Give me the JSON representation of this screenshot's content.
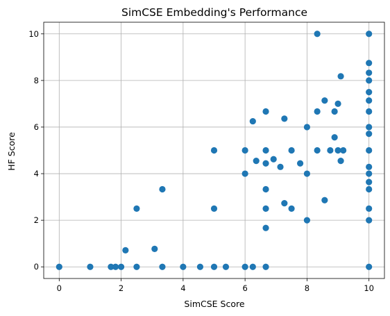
{
  "chart_data": {
    "type": "scatter",
    "title": "SimCSE Embedding's Performance",
    "xlabel": "SimCSE Score",
    "ylabel": "HF Score",
    "xlim": [
      -0.5,
      10.5
    ],
    "ylim": [
      -0.5,
      10.5
    ],
    "xticks": [
      0,
      2,
      4,
      6,
      8,
      10
    ],
    "yticks": [
      0,
      2,
      4,
      6,
      8,
      10
    ],
    "grid": true,
    "marker_color": "#1f77b4",
    "points": [
      {
        "x": 0,
        "y": 0
      },
      {
        "x": 1,
        "y": 0
      },
      {
        "x": 1.67,
        "y": 0
      },
      {
        "x": 1.82,
        "y": 0
      },
      {
        "x": 2,
        "y": 0
      },
      {
        "x": 2.5,
        "y": 0
      },
      {
        "x": 3.33,
        "y": 0
      },
      {
        "x": 4,
        "y": 0
      },
      {
        "x": 4.55,
        "y": 0
      },
      {
        "x": 5,
        "y": 0
      },
      {
        "x": 5.38,
        "y": 0
      },
      {
        "x": 6,
        "y": 0
      },
      {
        "x": 6.25,
        "y": 0
      },
      {
        "x": 6.67,
        "y": 0
      },
      {
        "x": 10,
        "y": 0
      },
      {
        "x": 2.14,
        "y": 0.71
      },
      {
        "x": 3.08,
        "y": 0.77
      },
      {
        "x": 2.5,
        "y": 2.5
      },
      {
        "x": 3.33,
        "y": 3.33
      },
      {
        "x": 5,
        "y": 2.5
      },
      {
        "x": 5,
        "y": 5
      },
      {
        "x": 6,
        "y": 4
      },
      {
        "x": 6,
        "y": 5
      },
      {
        "x": 6.25,
        "y": 6.25
      },
      {
        "x": 6.36,
        "y": 4.55
      },
      {
        "x": 6.67,
        "y": 1.67
      },
      {
        "x": 6.67,
        "y": 2.5
      },
      {
        "x": 6.67,
        "y": 3.33
      },
      {
        "x": 6.67,
        "y": 4.44
      },
      {
        "x": 6.67,
        "y": 5
      },
      {
        "x": 6.67,
        "y": 6.67
      },
      {
        "x": 6.92,
        "y": 4.62
      },
      {
        "x": 7.14,
        "y": 4.29
      },
      {
        "x": 7.27,
        "y": 2.73
      },
      {
        "x": 7.27,
        "y": 6.36
      },
      {
        "x": 7.5,
        "y": 2.5
      },
      {
        "x": 7.5,
        "y": 5
      },
      {
        "x": 7.78,
        "y": 4.44
      },
      {
        "x": 8,
        "y": 2
      },
      {
        "x": 8,
        "y": 4
      },
      {
        "x": 8,
        "y": 6
      },
      {
        "x": 8.33,
        "y": 5
      },
      {
        "x": 8.33,
        "y": 6.67
      },
      {
        "x": 8.33,
        "y": 10
      },
      {
        "x": 8.57,
        "y": 2.86
      },
      {
        "x": 8.57,
        "y": 7.14
      },
      {
        "x": 8.75,
        "y": 5
      },
      {
        "x": 8.89,
        "y": 5.56
      },
      {
        "x": 8.89,
        "y": 6.67
      },
      {
        "x": 9,
        "y": 5
      },
      {
        "x": 9,
        "y": 7
      },
      {
        "x": 9.09,
        "y": 4.55
      },
      {
        "x": 9.09,
        "y": 8.18
      },
      {
        "x": 9.17,
        "y": 5
      },
      {
        "x": 10,
        "y": 2
      },
      {
        "x": 10,
        "y": 2.5
      },
      {
        "x": 10,
        "y": 3.33
      },
      {
        "x": 10,
        "y": 3.64
      },
      {
        "x": 10,
        "y": 4
      },
      {
        "x": 10,
        "y": 4.29
      },
      {
        "x": 10,
        "y": 5
      },
      {
        "x": 10,
        "y": 5.71
      },
      {
        "x": 10,
        "y": 6
      },
      {
        "x": 10,
        "y": 6.67
      },
      {
        "x": 10,
        "y": 7.14
      },
      {
        "x": 10,
        "y": 7.5
      },
      {
        "x": 10,
        "y": 8
      },
      {
        "x": 10,
        "y": 8.33
      },
      {
        "x": 10,
        "y": 8.75
      },
      {
        "x": 10,
        "y": 10
      }
    ]
  }
}
